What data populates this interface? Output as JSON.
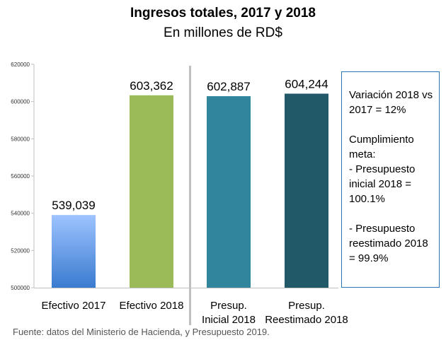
{
  "chart_data": {
    "type": "bar",
    "title": "Ingresos totales, 2017 y 2018",
    "subtitle": "En millones de RD$",
    "categories": [
      [
        "Efectivo 2017"
      ],
      [
        "Efectivo 2018"
      ],
      [
        "Presup.",
        "Inicial 2018"
      ],
      [
        "Presup.",
        "Reestimado 2018"
      ]
    ],
    "values": [
      539039,
      603362,
      602887,
      604244
    ],
    "value_labels": [
      "539,039",
      "603,362",
      "602,887",
      "604,244"
    ],
    "bar_colors": [
      "#4f8fdc",
      "#9bbb59",
      "#31859c",
      "#215968"
    ],
    "yticks": [
      "500000",
      "520000",
      "540000",
      "560000",
      "580000",
      "600000",
      "620000"
    ],
    "ylim": [
      500000,
      620000
    ],
    "grid": false
  },
  "note": {
    "lines": [
      "Variación 2018 vs 2017 = 12%",
      "",
      "Cumplimiento meta:",
      "- Presupuesto inicial 2018 = 100.1%",
      "",
      "- Presupuesto reestimado 2018 = 99.9%"
    ]
  },
  "source": "Fuente: datos del Ministerio de Hacienda, y Presupuesto 2019."
}
